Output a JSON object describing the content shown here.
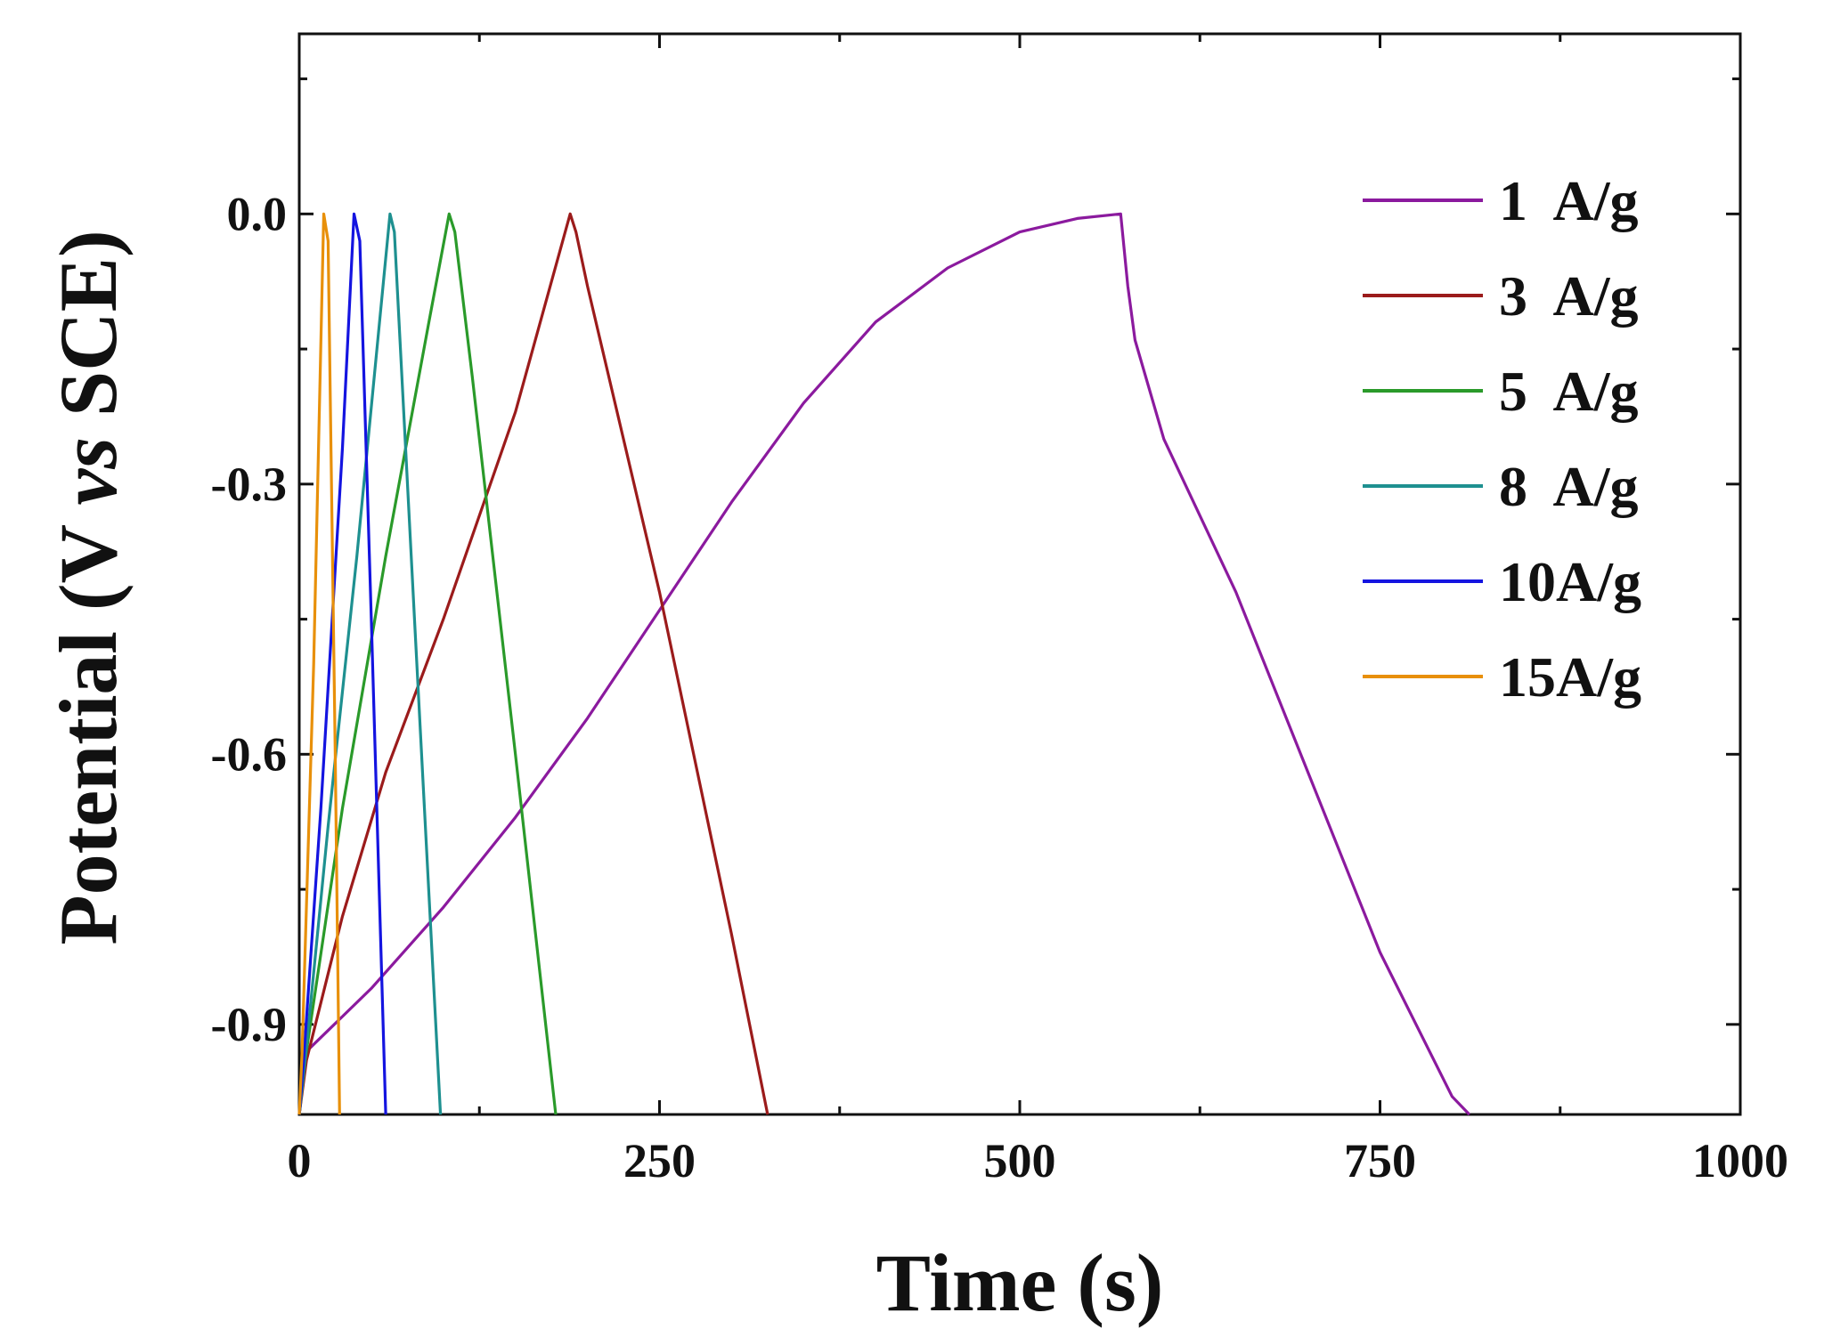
{
  "chart_data": {
    "type": "line",
    "title": "",
    "xlabel": "Time (s)",
    "ylabel_parts": [
      "Potential (V ",
      "vs",
      " SCE)"
    ],
    "xlim": [
      0,
      1000
    ],
    "ylim": [
      -1.0,
      0.2
    ],
    "xticks": [
      0,
      250,
      500,
      750,
      1000
    ],
    "xtick_labels": [
      "0",
      "250",
      "500",
      "750",
      "1000"
    ],
    "yticks": [
      -0.9,
      -0.6,
      -0.3,
      0.0
    ],
    "ytick_labels": [
      "-0.9",
      "-0.6",
      "-0.3",
      "0.0"
    ],
    "legend_position": "top-right",
    "grid": false,
    "series": [
      {
        "name": "1  A/g",
        "color": "#8B1A9E",
        "x": [
          0,
          5,
          50,
          100,
          150,
          200,
          250,
          300,
          350,
          400,
          450,
          500,
          540,
          570,
          575,
          580,
          600,
          650,
          700,
          750,
          800,
          812
        ],
        "y": [
          -1.0,
          -0.93,
          -0.86,
          -0.77,
          -0.67,
          -0.56,
          -0.44,
          -0.32,
          -0.21,
          -0.12,
          -0.06,
          -0.02,
          -0.005,
          0.0,
          -0.08,
          -0.14,
          -0.25,
          -0.42,
          -0.62,
          -0.82,
          -0.98,
          -1.0
        ]
      },
      {
        "name": "3  A/g",
        "color": "#9B1B1B",
        "x": [
          0,
          5,
          30,
          60,
          100,
          150,
          188,
          192,
          200,
          250,
          300,
          325
        ],
        "y": [
          -1.0,
          -0.94,
          -0.78,
          -0.62,
          -0.45,
          -0.22,
          0.0,
          -0.02,
          -0.08,
          -0.42,
          -0.8,
          -1.0
        ]
      },
      {
        "name": "5  A/g",
        "color": "#2A9A2A",
        "x": [
          0,
          4,
          30,
          60,
          90,
          104,
          108,
          120,
          150,
          178
        ],
        "y": [
          -1.0,
          -0.94,
          -0.66,
          -0.38,
          -0.12,
          0.0,
          -0.02,
          -0.18,
          -0.6,
          -1.0
        ]
      },
      {
        "name": "8  A/g",
        "color": "#1E9090",
        "x": [
          0,
          4,
          20,
          40,
          63,
          66,
          80,
          98
        ],
        "y": [
          -1.0,
          -0.94,
          -0.68,
          -0.38,
          0.0,
          -0.02,
          -0.45,
          -1.0
        ]
      },
      {
        "name": "10A/g",
        "color": "#1414E0",
        "x": [
          0,
          3,
          15,
          30,
          38,
          42,
          50,
          60
        ],
        "y": [
          -1.0,
          -0.94,
          -0.66,
          -0.26,
          0.0,
          -0.03,
          -0.45,
          -1.0
        ]
      },
      {
        "name": "15A/g",
        "color": "#E8900A",
        "x": [
          0,
          2,
          10,
          17,
          20,
          25,
          28
        ],
        "y": [
          -1.0,
          -0.93,
          -0.5,
          0.0,
          -0.03,
          -0.6,
          -1.0
        ]
      }
    ]
  }
}
